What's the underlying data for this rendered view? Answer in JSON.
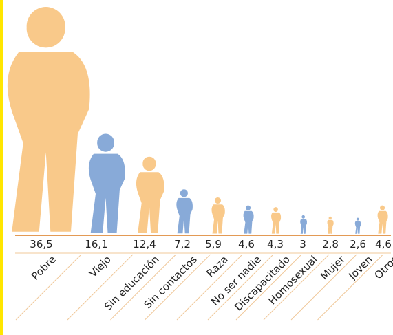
{
  "chart_data": {
    "type": "pictograph",
    "categories": [
      "Pobre",
      "Viejo",
      "Sin educación",
      "Sin contactos",
      "Raza",
      "No ser nadie",
      "Discapacitado",
      "Homosexual",
      "Mujer",
      "Joven",
      "Otros"
    ],
    "values": [
      36.5,
      16.1,
      12.4,
      7.2,
      5.9,
      4.6,
      4.3,
      3,
      2.8,
      2.6,
      4.6
    ],
    "value_labels": [
      "36,5",
      "16,1",
      "12,4",
      "7,2",
      "5,9",
      "4,6",
      "4,3",
      "3",
      "2,8",
      "2,6",
      "4,6"
    ],
    "colors": [
      "#f9c98a",
      "#88aad8",
      "#f9c98a",
      "#88aad8",
      "#f9c98a",
      "#88aad8",
      "#f9c98a",
      "#88aad8",
      "#f9c98a",
      "#88aad8",
      "#f9c98a"
    ]
  }
}
